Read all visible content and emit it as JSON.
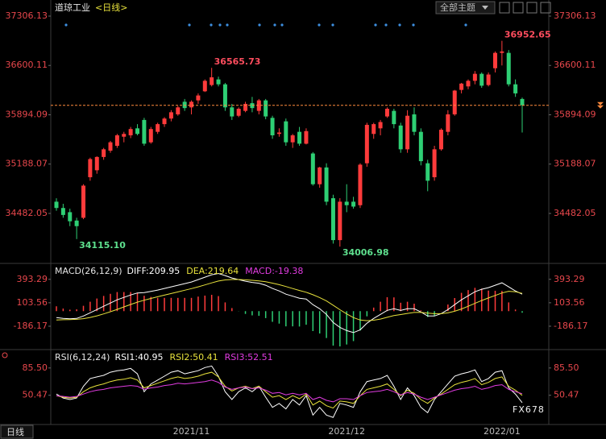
{
  "header": {
    "symbol": "道琼工业",
    "period": "<日线>",
    "theme_button": "全部主题"
  },
  "footer": {
    "period": "日线",
    "watermark": "FX678"
  },
  "chart_data": [
    {
      "type": "candlestick",
      "categories": [
        null,
        null,
        null,
        null,
        null,
        null,
        null,
        null,
        null,
        null,
        null,
        null,
        null,
        null,
        null,
        null,
        null,
        null,
        null,
        null,
        "2021/11",
        null,
        null,
        null,
        null,
        null,
        null,
        null,
        null,
        null,
        null,
        null,
        null,
        null,
        null,
        null,
        null,
        null,
        null,
        null,
        null,
        null,
        null,
        "2021/12",
        null,
        null,
        null,
        null,
        null,
        null,
        null,
        null,
        null,
        null,
        null,
        null,
        null,
        null,
        null,
        null,
        null,
        null,
        null,
        null,
        null,
        null,
        "2022/01",
        null,
        null,
        null
      ],
      "open": [
        34650,
        34560,
        34500,
        34380,
        34420,
        35000,
        35100,
        35290,
        35380,
        35450,
        35580,
        35600,
        35700,
        35820,
        35500,
        35650,
        35760,
        35840,
        35900,
        36080,
        36000,
        36100,
        36230,
        36320,
        36400,
        36330,
        36000,
        35880,
        35950,
        36060,
        35950,
        36100,
        35850,
        35620,
        35800,
        35500,
        35650,
        35480,
        35340,
        34900,
        35140,
        34700,
        34100,
        34650,
        34650,
        34600,
        35200,
        35620,
        35700,
        35870,
        35950,
        35740,
        35400,
        35900,
        35650,
        35200,
        35000,
        35400,
        35650,
        35900,
        36250,
        36300,
        36380,
        36480,
        36320,
        36560,
        36780,
        36780,
        36330,
        36120
      ],
      "high": [
        34700,
        34620,
        34550,
        34420,
        34900,
        35280,
        35300,
        35420,
        35520,
        35620,
        35650,
        35720,
        35760,
        35850,
        35720,
        35780,
        35860,
        35960,
        36020,
        36120,
        36100,
        36200,
        36400,
        36565.73,
        36440,
        36350,
        36050,
        36000,
        36080,
        36150,
        36120,
        36120,
        35880,
        35700,
        35840,
        35620,
        35720,
        35700,
        35360,
        35150,
        35200,
        34750,
        34700,
        34900,
        34720,
        35200,
        35780,
        35780,
        35820,
        36000,
        35980,
        35780,
        35960,
        36000,
        35700,
        35250,
        35450,
        35700,
        35960,
        36250,
        36350,
        36400,
        36520,
        36500,
        36500,
        36800,
        36952.65,
        36820,
        36400,
        36140
      ],
      "low": [
        34520,
        34420,
        34300,
        34115.1,
        34400,
        34950,
        35050,
        35250,
        35350,
        35420,
        35500,
        35560,
        35600,
        35450,
        35480,
        35620,
        35720,
        35800,
        35880,
        35950,
        35900,
        36050,
        36220,
        36300,
        36300,
        35950,
        35820,
        35860,
        35930,
        35930,
        35900,
        35830,
        35550,
        35580,
        35450,
        35420,
        35450,
        35470,
        34880,
        34850,
        34600,
        34050,
        34006.98,
        34500,
        34550,
        34560,
        35150,
        35550,
        35600,
        35850,
        35700,
        35350,
        35350,
        35600,
        35170,
        34800,
        34950,
        35380,
        35600,
        35880,
        36200,
        36260,
        36330,
        36280,
        36300,
        36500,
        36600,
        36300,
        36150,
        35640
      ],
      "close": [
        34560,
        34460,
        34370,
        34300,
        34880,
        35260,
        35290,
        35400,
        35500,
        35600,
        35620,
        35690,
        35620,
        35480,
        35690,
        35760,
        35840,
        35930,
        36000,
        35990,
        36080,
        36170,
        36380,
        36430,
        36330,
        36000,
        35870,
        35980,
        36050,
        35990,
        36100,
        35870,
        35600,
        35640,
        35500,
        35600,
        35480,
        35660,
        34900,
        35140,
        34650,
        34100,
        34650,
        34600,
        34580,
        35180,
        35750,
        35760,
        35790,
        35980,
        35760,
        35400,
        35880,
        35650,
        35230,
        34950,
        35400,
        35680,
        35900,
        36240,
        36340,
        36380,
        36480,
        36310,
        36470,
        36780,
        36800,
        36330,
        36200,
        36030
      ],
      "up_color": "#ff3b3b",
      "down_color": "#2ecf74",
      "last_line_color": "#ff8a3d",
      "ylim": [
        33790,
        37479
      ],
      "yticks": [
        37306.13,
        36600.11,
        35894.09,
        35188.07,
        34482.05
      ],
      "annotations": [
        {
          "text": "36565.73"
        },
        {
          "text": "34115.10"
        },
        {
          "text": "34006.98"
        },
        {
          "text": "36952.65"
        }
      ]
    },
    {
      "type": "combo",
      "title": "MACD(26,12,9)",
      "ylim": [
        -465,
        560
      ],
      "yticks": [
        393.29,
        103.56,
        -186.17
      ],
      "series": [
        {
          "name": "DIFF:209.95",
          "color": "#ffffff",
          "values": [
            -80,
            -90,
            -95,
            -90,
            -60,
            -20,
            20,
            60,
            100,
            140,
            170,
            200,
            225,
            230,
            245,
            260,
            280,
            300,
            320,
            340,
            360,
            390,
            420,
            450,
            465,
            440,
            410,
            390,
            370,
            355,
            345,
            320,
            280,
            250,
            210,
            185,
            160,
            150,
            80,
            30,
            -40,
            -140,
            -200,
            -240,
            -265,
            -230,
            -150,
            -90,
            -40,
            10,
            30,
            10,
            30,
            30,
            -10,
            -60,
            -60,
            -30,
            20,
            80,
            140,
            190,
            240,
            270,
            290,
            320,
            350,
            300,
            250,
            209.95
          ]
        },
        {
          "name": "DEA:219.64",
          "color": "#e8e23c",
          "values": [
            -110,
            -106,
            -104,
            -101,
            -93,
            -78,
            -58,
            -34,
            -7,
            22,
            52,
            82,
            111,
            135,
            157,
            178,
            198,
            218,
            238,
            258,
            278,
            300,
            324,
            349,
            372,
            386,
            391,
            391,
            387,
            381,
            374,
            363,
            346,
            327,
            304,
            279,
            255,
            234,
            203,
            168,
            126,
            73,
            18,
            -34,
            -80,
            -110,
            -118,
            -112,
            -98,
            -76,
            -55,
            -42,
            -28,
            -16,
            -15,
            -24,
            -31,
            -31,
            -21,
            -1,
            27,
            60,
            96,
            131,
            163,
            194,
            225,
            246,
            240,
            219.64
          ]
        },
        {
          "name": "MACD:-19.38",
          "color": "#e23ce2",
          "kind": "bar",
          "up_color": "#ff3b3b",
          "down_color": "#2ecf74",
          "values": [
            60,
            32,
            18,
            22,
            66,
            116,
            156,
            188,
            214,
            236,
            236,
            236,
            228,
            190,
            176,
            164,
            164,
            164,
            164,
            164,
            164,
            180,
            192,
            202,
            186,
            108,
            38,
            -2,
            -34,
            -52,
            -58,
            -86,
            -132,
            -154,
            -188,
            -188,
            -190,
            -168,
            -246,
            -276,
            -332,
            -426,
            -436,
            -412,
            -370,
            -240,
            -64,
            44,
            116,
            172,
            170,
            104,
            116,
            92,
            10,
            -72,
            -58,
            2,
            82,
            162,
            226,
            260,
            288,
            278,
            254,
            252,
            250,
            108,
            20,
            -19.38
          ]
        }
      ]
    },
    {
      "type": "line",
      "title": "RSI(6,12,24)",
      "ylim": [
        15,
        106
      ],
      "yticks": [
        {
          "value": 85.5,
          "label": "85.50"
        },
        50.47
      ],
      "series": [
        {
          "name": "RSI1:40.95",
          "color": "#ffffff",
          "values": [
            52,
            47,
            45,
            47,
            62,
            72,
            74,
            76,
            80,
            82,
            83,
            85,
            78,
            55,
            65,
            70,
            75,
            80,
            82,
            78,
            80,
            82,
            86,
            88,
            75,
            55,
            45,
            55,
            60,
            55,
            62,
            48,
            35,
            40,
            33,
            45,
            38,
            50,
            25,
            35,
            25,
            22,
            40,
            38,
            35,
            55,
            68,
            70,
            72,
            76,
            62,
            45,
            60,
            50,
            35,
            28,
            45,
            55,
            65,
            75,
            78,
            80,
            83,
            68,
            72,
            80,
            82,
            60,
            52,
            40.95
          ]
        },
        {
          "name": "RSI2:50.41",
          "color": "#e8e23c",
          "values": [
            50,
            48,
            47,
            48,
            55,
            60,
            63,
            65,
            68,
            70,
            71,
            73,
            70,
            60,
            63,
            66,
            69,
            72,
            74,
            72,
            73,
            75,
            78,
            80,
            74,
            62,
            56,
            60,
            62,
            59,
            62,
            55,
            48,
            50,
            45,
            50,
            46,
            52,
            38,
            43,
            37,
            34,
            43,
            42,
            40,
            50,
            58,
            60,
            62,
            65,
            58,
            50,
            57,
            53,
            45,
            40,
            47,
            52,
            58,
            64,
            67,
            69,
            72,
            64,
            67,
            72,
            74,
            62,
            57,
            50.41
          ]
        },
        {
          "name": "RSI3:52.51",
          "color": "#e23ce2",
          "values": [
            50,
            49,
            48,
            49,
            52,
            55,
            57,
            58,
            60,
            61,
            62,
            63,
            62,
            58,
            60,
            61,
            63,
            64,
            66,
            65,
            66,
            67,
            68,
            70,
            67,
            61,
            58,
            60,
            61,
            59,
            60,
            57,
            53,
            54,
            51,
            53,
            51,
            53,
            45,
            48,
            44,
            42,
            46,
            46,
            45,
            50,
            54,
            55,
            56,
            58,
            55,
            51,
            54,
            52,
            48,
            45,
            48,
            51,
            54,
            57,
            59,
            60,
            62,
            58,
            60,
            63,
            64,
            58,
            55,
            52.51
          ]
        }
      ]
    }
  ]
}
